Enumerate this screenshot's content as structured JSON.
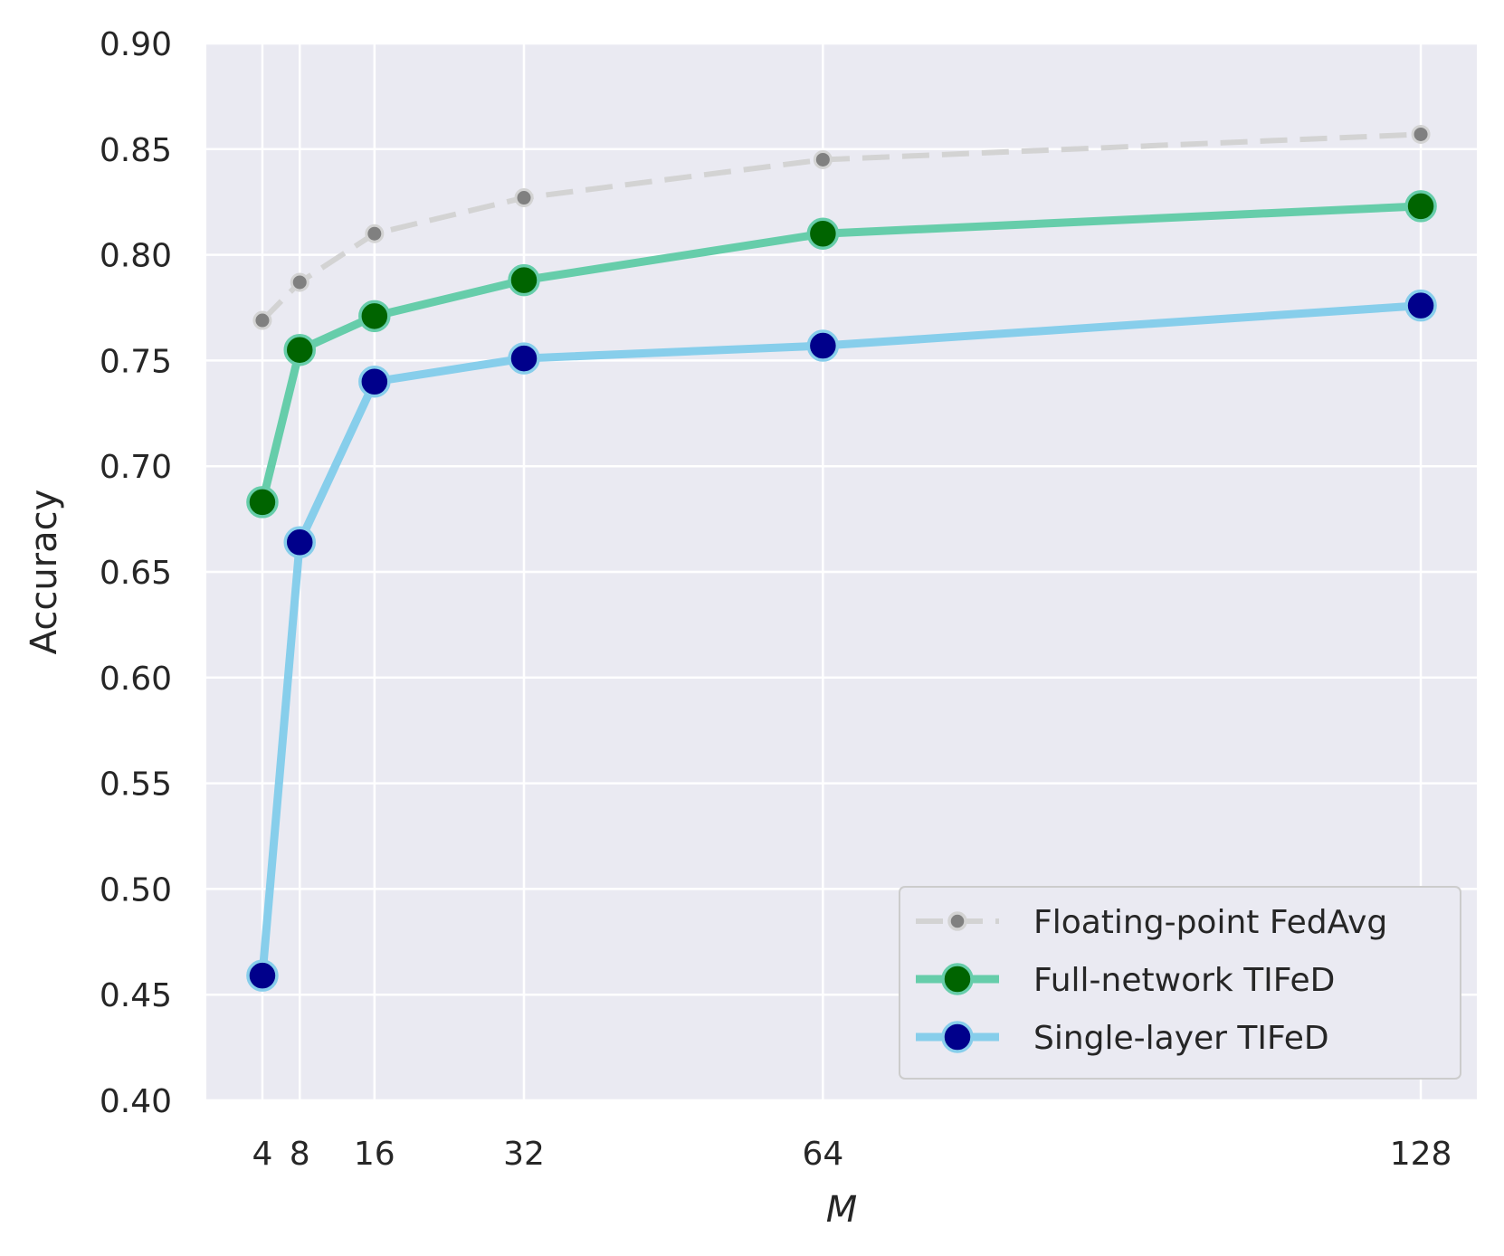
{
  "chart_data": {
    "type": "line",
    "title": "",
    "xlabel": "M",
    "ylabel": "Accuracy",
    "x": [
      4,
      8,
      16,
      32,
      64,
      128
    ],
    "x_tick_labels": [
      "4",
      "8",
      "16",
      "32",
      "64",
      "128"
    ],
    "xlim": [
      -2,
      134
    ],
    "ylim": [
      0.4,
      0.9
    ],
    "y_ticks": [
      0.4,
      0.45,
      0.5,
      0.55,
      0.6,
      0.65,
      0.7,
      0.75,
      0.8,
      0.85,
      0.9
    ],
    "y_tick_labels": [
      "0.40",
      "0.45",
      "0.50",
      "0.55",
      "0.60",
      "0.65",
      "0.70",
      "0.75",
      "0.80",
      "0.85",
      "0.90"
    ],
    "grid": true,
    "background": "#eaeaf2",
    "legend_position": "lower-right",
    "series": [
      {
        "name": "Floating-point FedAvg",
        "values": [
          0.769,
          0.787,
          0.81,
          0.827,
          0.845,
          0.857
        ],
        "line_color": "#d3d3d3",
        "marker_color": "#808080",
        "line_style": "dashed",
        "marker_size": "small"
      },
      {
        "name": "Full-network TIFeD",
        "values": [
          0.683,
          0.755,
          0.771,
          0.788,
          0.81,
          0.823
        ],
        "line_color": "#66cdaa",
        "marker_color": "#006400",
        "line_style": "solid",
        "marker_size": "large"
      },
      {
        "name": "Single-layer TIFeD",
        "values": [
          0.459,
          0.664,
          0.74,
          0.751,
          0.757,
          0.776
        ],
        "line_color": "#87ceeb",
        "marker_color": "#00008b",
        "line_style": "solid",
        "marker_size": "large"
      }
    ]
  }
}
